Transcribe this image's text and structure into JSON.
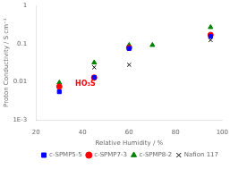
{
  "chart_data": {
    "type": "scatter",
    "xlabel": "Relative Humidity / %",
    "ylabel": "Proton Conductivity / S cm⁻¹",
    "xlim": [
      20,
      100
    ],
    "xticks": [
      20,
      40,
      60,
      80,
      100
    ],
    "ylim": [
      0.001,
      1
    ],
    "yticks": [
      {
        "value": 0.001,
        "label": "1E-3"
      },
      0.01,
      0.1,
      1
    ],
    "log": "y",
    "grid": false,
    "legend": "lower right",
    "series": [
      {
        "name": "c-SPMP5-5",
        "color": "blue",
        "marker": "square",
        "x": [
          30,
          45,
          60,
          95
        ],
        "values": [
          0.0055,
          0.013,
          0.075,
          0.155
        ]
      },
      {
        "name": "c-SPMP7-3",
        "color": "red",
        "marker": "circle",
        "x": [
          30,
          45,
          60,
          95
        ],
        "values": [
          0.0075,
          0.013,
          0.078,
          0.17
        ]
      },
      {
        "name": "c-SPMP8-2",
        "color": "green",
        "marker": "triangle",
        "x": [
          30,
          45,
          60,
          70,
          95
        ],
        "values": [
          0.0095,
          0.032,
          0.092,
          0.092,
          0.27
        ]
      },
      {
        "name": "Nafion 117",
        "color": "black",
        "marker": "x",
        "x": [
          45,
          60,
          95
        ],
        "values": [
          0.024,
          0.028,
          0.125
        ]
      }
    ],
    "annotations": [
      {
        "text": "HO₃S",
        "color": "red"
      }
    ]
  }
}
